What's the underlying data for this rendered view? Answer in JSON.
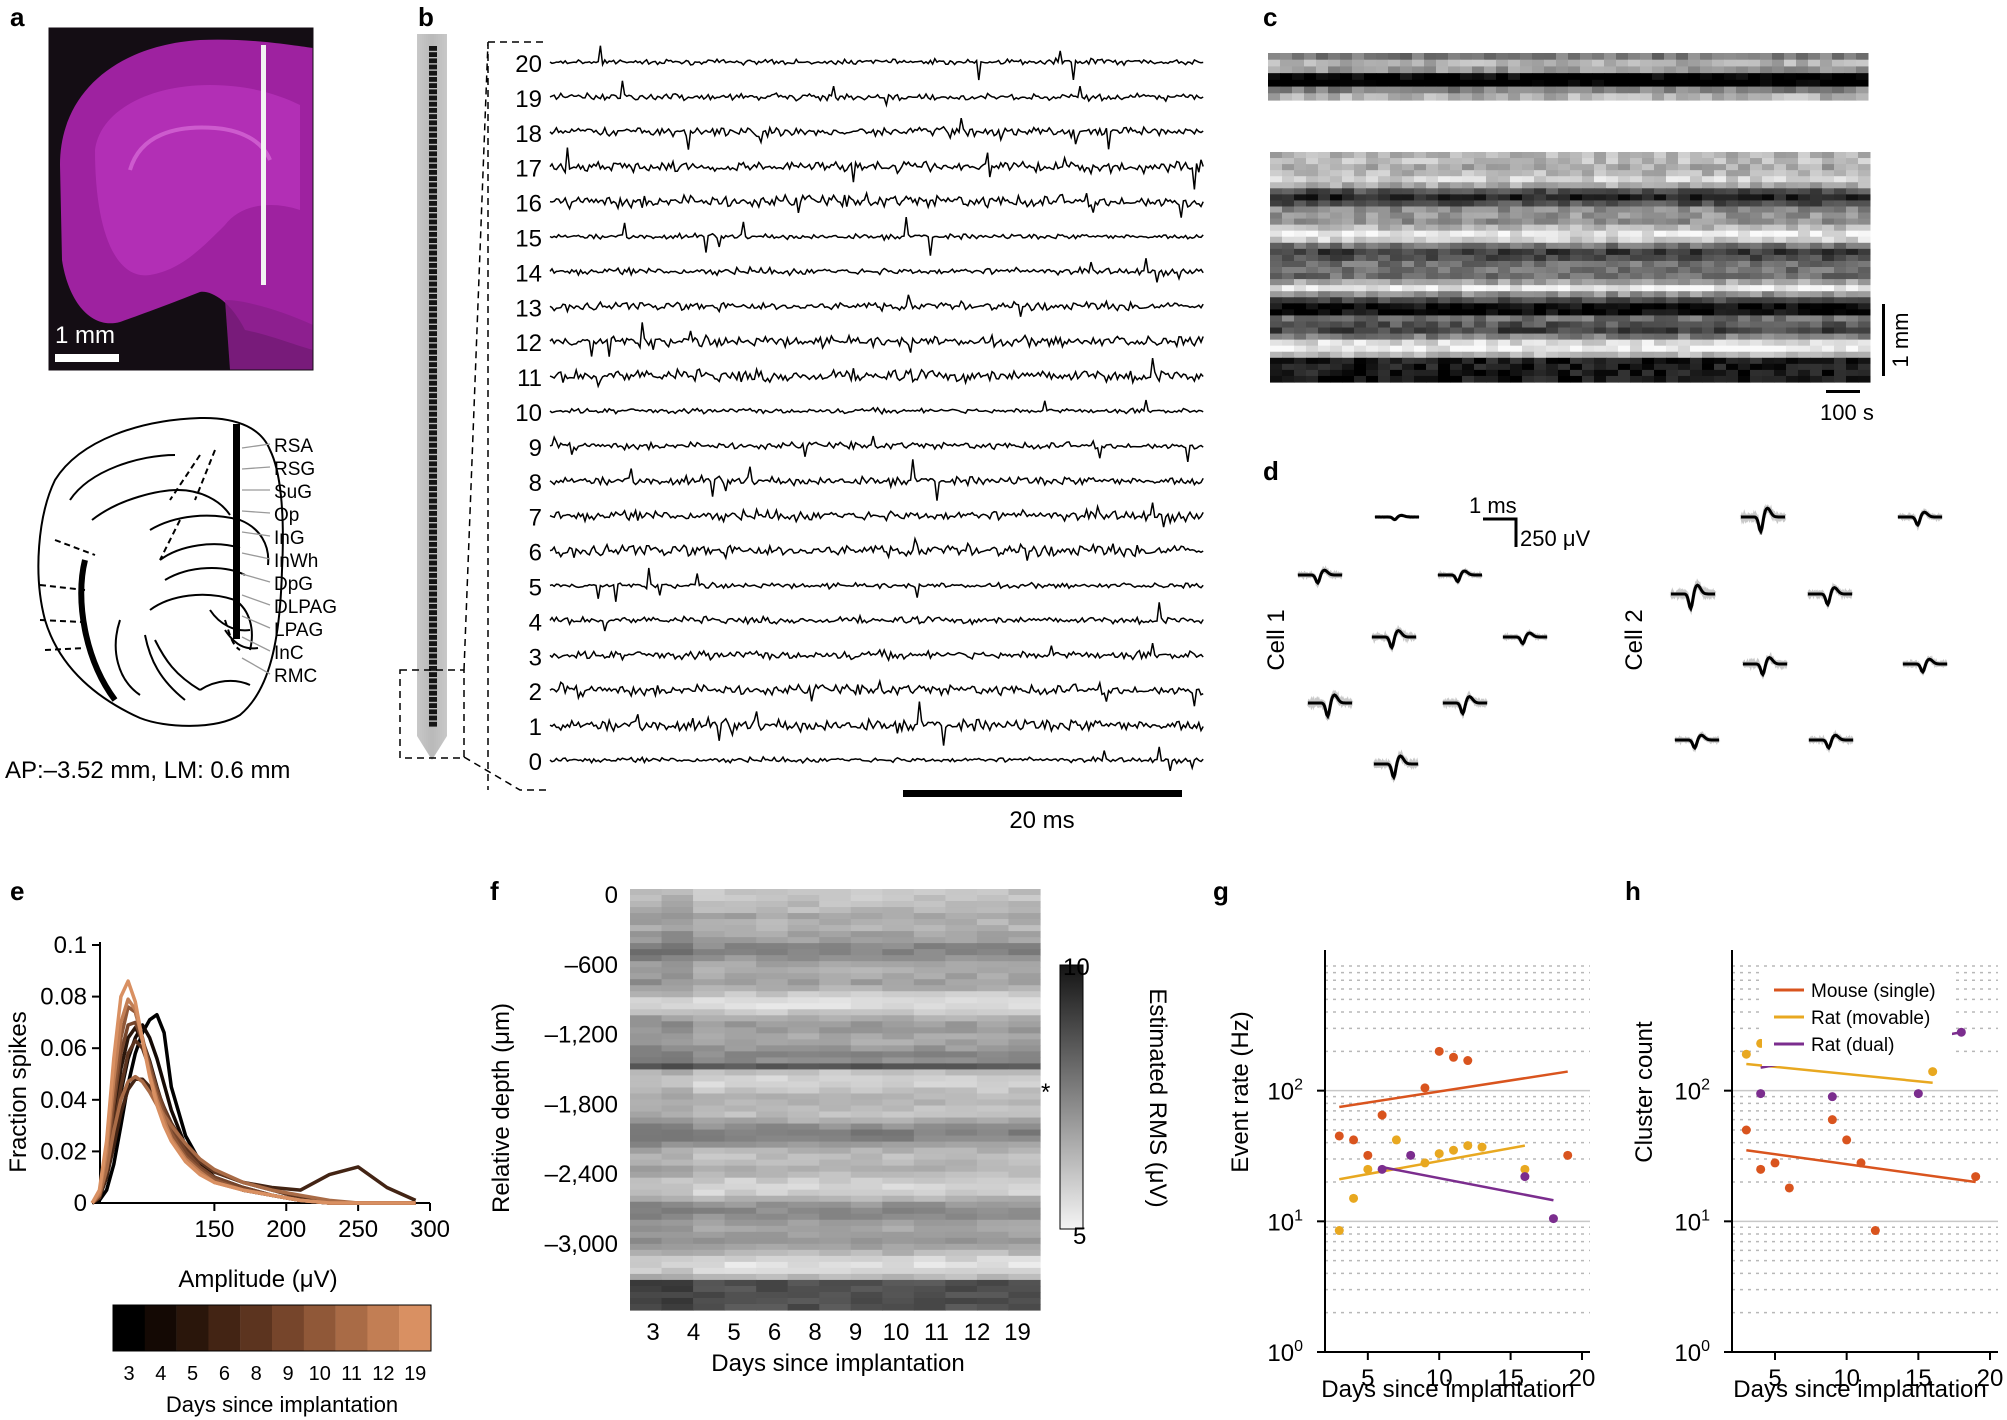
{
  "panels": {
    "a": {
      "letter": "a",
      "scale_label": "1 mm",
      "regions": [
        "RSA",
        "RSG",
        "SuG",
        "Op",
        "InG",
        "InWh",
        "DpG",
        "DLPAG",
        "LPAG",
        "InC",
        "RMC"
      ],
      "coords": "AP:–3.52 mm, LM: 0.6 mm",
      "colors": {
        "tissue": "#b52bb8",
        "background": "#140d14"
      }
    },
    "b": {
      "letter": "b",
      "channels": [
        "20",
        "19",
        "18",
        "17",
        "16",
        "15",
        "14",
        "13",
        "12",
        "11",
        "10",
        "9",
        "8",
        "7",
        "6",
        "5",
        "4",
        "3",
        "2",
        "1",
        "0"
      ],
      "scale_label": "20 ms"
    },
    "c": {
      "letter": "c",
      "scale_y": "1 mm",
      "scale_x": "100 s"
    },
    "d": {
      "letter": "d",
      "cell1": "Cell 1",
      "cell2": "Cell 2",
      "scale_x": "1 ms",
      "scale_y": "250 μV"
    },
    "e": {
      "letter": "e",
      "ylabel": "Fraction spikes",
      "xlabel": "Amplitude (μV)",
      "yticks": [
        "0",
        "0.02",
        "0.04",
        "0.06",
        "0.08",
        "0.1"
      ],
      "xticks": [
        "150",
        "200",
        "250",
        "300"
      ],
      "colorbar_labels": [
        "3",
        "4",
        "5",
        "6",
        "8",
        "9",
        "10",
        "11",
        "12",
        "19"
      ],
      "colorbar_title": "Days since implantation",
      "colors": [
        "#000000",
        "#140904",
        "#2a160b",
        "#432414",
        "#5c341f",
        "#76452b",
        "#905838",
        "#a96b46",
        "#c27e54",
        "#d99062"
      ]
    },
    "f": {
      "letter": "f",
      "ylabel": "Relative depth (μm)",
      "xlabel": "Days since implantation",
      "yticks": [
        "0",
        "–600",
        "–1,200",
        "–1,800",
        "–2,400",
        "–3,000"
      ],
      "xticks": [
        "3",
        "4",
        "5",
        "6",
        "8",
        "9",
        "10",
        "11",
        "12",
        "19"
      ],
      "colorbar_label": "Estimated RMS (μV)",
      "colorbar_max": "10",
      "colorbar_min": "5",
      "star": "*"
    },
    "g": {
      "letter": "g",
      "ylabel": "Event rate (Hz)",
      "xlabel": "Days since implantation"
    },
    "h": {
      "letter": "h",
      "ylabel": "Cluster count",
      "xlabel": "Days since implantation",
      "legend": [
        "Mouse (single)",
        "Rat (movable)",
        "Rat (dual)"
      ]
    }
  },
  "log_axis": {
    "ticks_base": [
      "10",
      "10",
      "10"
    ],
    "ticks_exp": [
      "0",
      "1",
      "2"
    ],
    "xticks": [
      "5",
      "10",
      "15",
      "20"
    ]
  },
  "chart_data": [
    {
      "type": "line",
      "panel": "e",
      "xlabel": "Amplitude (μV)",
      "ylabel": "Fraction spikes",
      "xlim": [
        60,
        300
      ],
      "ylim": [
        0,
        0.1
      ],
      "series": [
        {
          "name": "3",
          "x": [
            65,
            70,
            75,
            80,
            85,
            90,
            95,
            100,
            105,
            110,
            115,
            120,
            130,
            140,
            150,
            170,
            190,
            210,
            230,
            250,
            270,
            290
          ],
          "y": [
            0,
            0.001,
            0.005,
            0.015,
            0.03,
            0.046,
            0.058,
            0.066,
            0.071,
            0.073,
            0.066,
            0.045,
            0.026,
            0.016,
            0.01,
            0.005,
            0.003,
            0.001,
            0,
            0,
            0,
            0
          ]
        },
        {
          "name": "4",
          "x": [
            65,
            70,
            75,
            80,
            85,
            90,
            95,
            100,
            105,
            110,
            115,
            120,
            130,
            140,
            150,
            170,
            190,
            210,
            230,
            250,
            270,
            290
          ],
          "y": [
            0,
            0.002,
            0.01,
            0.025,
            0.043,
            0.056,
            0.064,
            0.069,
            0.064,
            0.056,
            0.046,
            0.036,
            0.022,
            0.015,
            0.01,
            0.005,
            0.003,
            0.001,
            0,
            0,
            0,
            0
          ]
        },
        {
          "name": "5",
          "x": [
            65,
            70,
            75,
            80,
            85,
            90,
            95,
            100,
            105,
            110,
            115,
            120,
            130,
            140,
            150,
            170,
            190,
            210,
            230,
            250,
            270,
            290
          ],
          "y": [
            0,
            0.003,
            0.014,
            0.032,
            0.052,
            0.064,
            0.068,
            0.063,
            0.055,
            0.045,
            0.036,
            0.029,
            0.02,
            0.014,
            0.01,
            0.006,
            0.003,
            0.001,
            0,
            0,
            0,
            0
          ]
        },
        {
          "name": "6",
          "x": [
            65,
            70,
            75,
            80,
            85,
            90,
            95,
            100,
            105,
            110,
            115,
            120,
            130,
            140,
            150,
            170,
            190,
            210,
            230,
            250,
            270,
            290
          ],
          "y": [
            0,
            0.002,
            0.01,
            0.022,
            0.035,
            0.044,
            0.048,
            0.048,
            0.045,
            0.04,
            0.035,
            0.03,
            0.022,
            0.016,
            0.012,
            0.008,
            0.006,
            0.005,
            0.011,
            0.014,
            0.006,
            0.001
          ]
        },
        {
          "name": "8",
          "x": [
            65,
            70,
            75,
            80,
            85,
            90,
            95,
            100,
            105,
            110,
            115,
            120,
            130,
            140,
            150,
            170,
            190,
            210,
            230,
            250,
            270,
            290
          ],
          "y": [
            0,
            0.002,
            0.012,
            0.028,
            0.045,
            0.058,
            0.063,
            0.06,
            0.052,
            0.044,
            0.037,
            0.031,
            0.022,
            0.016,
            0.012,
            0.008,
            0.005,
            0.002,
            0,
            0,
            0,
            0
          ]
        },
        {
          "name": "9",
          "x": [
            65,
            70,
            75,
            80,
            85,
            90,
            95,
            100,
            105,
            110,
            115,
            120,
            130,
            140,
            150,
            170,
            190,
            210,
            230,
            250,
            270,
            290
          ],
          "y": [
            0,
            0.003,
            0.016,
            0.038,
            0.058,
            0.069,
            0.07,
            0.063,
            0.054,
            0.044,
            0.036,
            0.029,
            0.02,
            0.014,
            0.01,
            0.006,
            0.003,
            0.001,
            0,
            0,
            0,
            0
          ]
        },
        {
          "name": "10",
          "x": [
            65,
            70,
            75,
            80,
            85,
            90,
            95,
            100,
            105,
            110,
            115,
            120,
            130,
            140,
            150,
            170,
            190,
            210,
            230,
            250,
            270,
            290
          ],
          "y": [
            0,
            0.004,
            0.018,
            0.042,
            0.064,
            0.076,
            0.074,
            0.064,
            0.052,
            0.042,
            0.034,
            0.027,
            0.018,
            0.013,
            0.009,
            0.005,
            0.003,
            0.001,
            0,
            0,
            0,
            0
          ]
        },
        {
          "name": "11",
          "x": [
            65,
            70,
            75,
            80,
            85,
            90,
            95,
            100,
            105,
            110,
            115,
            120,
            130,
            140,
            150,
            170,
            190,
            210,
            230,
            250,
            270,
            290
          ],
          "y": [
            0,
            0.003,
            0.013,
            0.028,
            0.04,
            0.047,
            0.049,
            0.047,
            0.043,
            0.038,
            0.034,
            0.03,
            0.023,
            0.017,
            0.013,
            0.008,
            0.005,
            0.003,
            0.001,
            0,
            0,
            0
          ]
        },
        {
          "name": "12",
          "x": [
            65,
            70,
            75,
            80,
            85,
            90,
            95,
            100,
            105,
            110,
            115,
            120,
            130,
            140,
            150,
            170,
            190,
            210,
            230,
            250,
            270,
            290
          ],
          "y": [
            0,
            0.004,
            0.02,
            0.048,
            0.07,
            0.079,
            0.075,
            0.063,
            0.05,
            0.04,
            0.032,
            0.025,
            0.017,
            0.012,
            0.008,
            0.005,
            0.003,
            0.001,
            0,
            0,
            0,
            0
          ]
        },
        {
          "name": "19",
          "x": [
            65,
            70,
            75,
            80,
            85,
            90,
            95,
            100,
            105,
            110,
            115,
            120,
            130,
            140,
            150,
            170,
            190,
            210,
            230,
            250,
            270,
            290
          ],
          "y": [
            0,
            0.005,
            0.024,
            0.056,
            0.08,
            0.086,
            0.078,
            0.063,
            0.049,
            0.038,
            0.03,
            0.024,
            0.016,
            0.011,
            0.008,
            0.005,
            0.003,
            0.001,
            0,
            0,
            0,
            0
          ]
        }
      ]
    },
    {
      "type": "scatter",
      "panel": "g",
      "log_y": true,
      "xlim": [
        2,
        20
      ],
      "ylim": [
        1,
        1000
      ],
      "xlabel": "Days since implantation",
      "ylabel": "Event rate (Hz)",
      "series": [
        {
          "name": "Mouse (single)",
          "color": "#d9541e",
          "x": [
            3,
            4,
            5,
            6,
            9,
            10,
            11,
            12,
            19
          ],
          "y": [
            45,
            42,
            32,
            65,
            105,
            200,
            180,
            170,
            32
          ],
          "fit": [
            [
              3,
              75
            ],
            [
              19,
              140
            ]
          ]
        },
        {
          "name": "Rat (movable)",
          "color": "#e8a820",
          "x": [
            3,
            4,
            5,
            7,
            9,
            10,
            11,
            12,
            13,
            16
          ],
          "y": [
            8.5,
            15,
            25,
            42,
            28,
            33,
            35,
            38,
            37,
            25
          ],
          "fit": [
            [
              3,
              21
            ],
            [
              16,
              38
            ]
          ]
        },
        {
          "name": "Rat (dual)",
          "color": "#7b2d8e",
          "x": [
            6,
            8,
            16,
            18
          ],
          "y": [
            25,
            32,
            22,
            10.5
          ],
          "fit": [
            [
              6,
              26
            ],
            [
              18,
              14.5
            ]
          ]
        }
      ]
    },
    {
      "type": "scatter",
      "panel": "h",
      "log_y": true,
      "xlim": [
        2,
        20
      ],
      "ylim": [
        1,
        1000
      ],
      "xlabel": "Days since implantation",
      "ylabel": "Cluster count",
      "series": [
        {
          "name": "Mouse (single)",
          "color": "#d9541e",
          "x": [
            3,
            4,
            5,
            6,
            9,
            10,
            11,
            12,
            19
          ],
          "y": [
            50,
            25,
            28,
            18,
            60,
            42,
            28,
            8.5,
            22
          ],
          "fit": [
            [
              3,
              35
            ],
            [
              19,
              20
            ]
          ]
        },
        {
          "name": "Rat (movable)",
          "color": "#e8a820",
          "x": [
            3,
            4,
            5,
            7,
            8,
            9,
            10,
            11,
            12,
            13,
            16
          ],
          "y": [
            190,
            230,
            215,
            195,
            200,
            210,
            220,
            215,
            210,
            195,
            140
          ],
          "fit": [
            [
              3,
              160
            ],
            [
              16,
              115
            ]
          ]
        },
        {
          "name": "Rat (dual)",
          "color": "#7b2d8e",
          "x": [
            4,
            7,
            9,
            15,
            16,
            17,
            18
          ],
          "y": [
            95,
            260,
            90,
            95,
            330,
            300,
            280
          ],
          "fit": [
            [
              4,
              150
            ],
            [
              18,
              280
            ]
          ]
        }
      ]
    }
  ]
}
